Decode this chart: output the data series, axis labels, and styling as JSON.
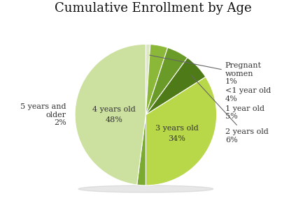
{
  "title": "Cumulative Enrollment by Age",
  "slices": [
    {
      "label_line1": "Pregnant",
      "label_line2": "women",
      "label_pct": "1%",
      "value": 1,
      "color": "#dce9c0"
    },
    {
      "label_line1": "<1 year old",
      "label_line2": "4%",
      "label_pct": "",
      "value": 4,
      "color": "#8cb83a"
    },
    {
      "label_line1": "1 year old",
      "label_line2": "5%",
      "label_pct": "",
      "value": 5,
      "color": "#6a9a28"
    },
    {
      "label_line1": "2 years old",
      "label_line2": "6%",
      "label_pct": "",
      "value": 6,
      "color": "#4f7a18"
    },
    {
      "label_line1": "3 years old",
      "label_line2": "34%",
      "label_pct": "",
      "value": 34,
      "color": "#b8d84a"
    },
    {
      "label_line1": "5 years and",
      "label_line2": "older",
      "label_pct": "2%",
      "value": 2,
      "color": "#7aab30"
    },
    {
      "label_line1": "4 years old",
      "label_line2": "48%",
      "label_pct": "",
      "value": 48,
      "color": "#cce0a0"
    }
  ],
  "background_color": "#ffffff",
  "title_fontsize": 13,
  "label_fontsize": 8,
  "inside_label_color": "#333333",
  "outside_label_color": "#333333"
}
